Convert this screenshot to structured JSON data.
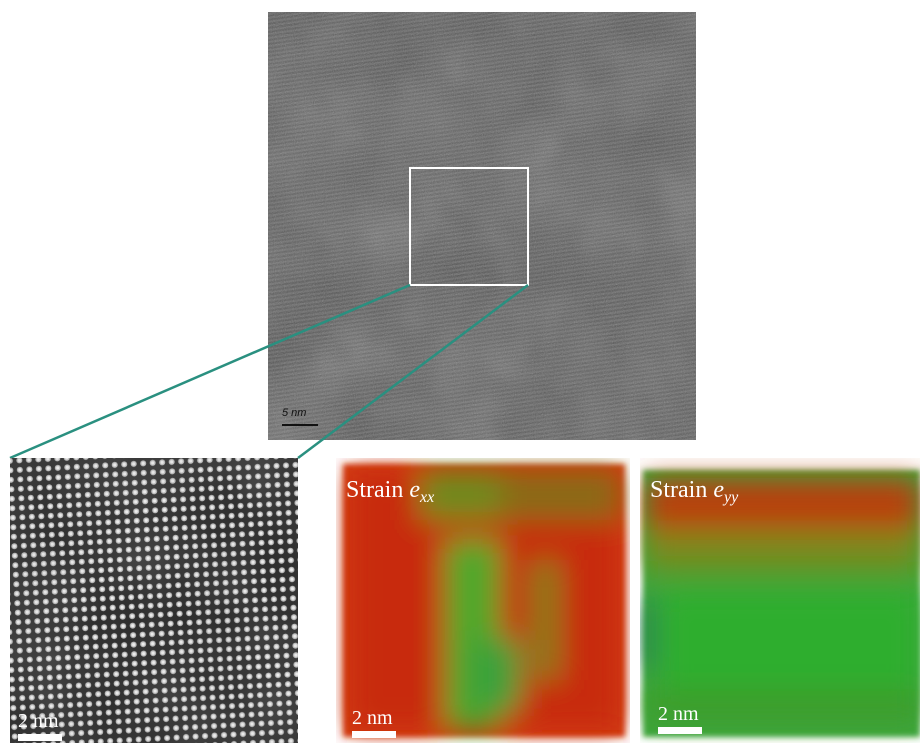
{
  "overview": {
    "scale_bar": "5 nm"
  },
  "zoom": {
    "scale_bar": "2 nm"
  },
  "strain_xx": {
    "label": "Strain",
    "symbol": "e",
    "subscript": "xx",
    "scale_bar": "2 nm"
  },
  "strain_yy": {
    "label": "Strain",
    "symbol": "e",
    "subscript": "yy",
    "scale_bar": "2 nm"
  }
}
